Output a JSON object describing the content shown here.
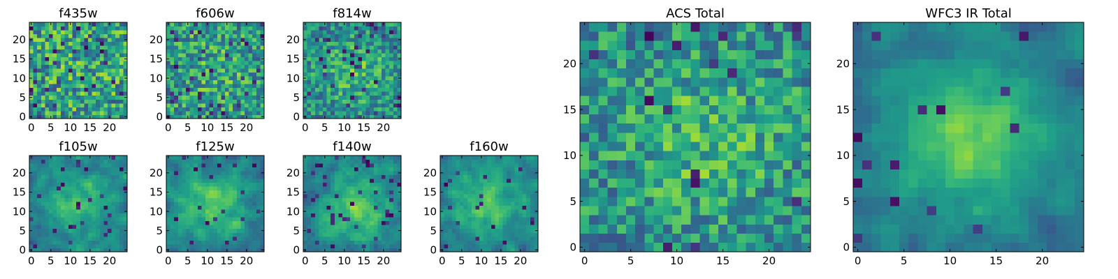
{
  "figure": {
    "background": "#ffffff",
    "colormap": "viridis"
  },
  "chart_data": [
    {
      "type": "heatmap",
      "title": "f435w",
      "grid": [
        25,
        25
      ],
      "xticks": [
        0,
        5,
        10,
        15,
        20
      ],
      "yticks": [
        0,
        5,
        10,
        15,
        20
      ],
      "xlim": [
        -0.5,
        24.5
      ],
      "ylim": [
        -0.5,
        24.5
      ],
      "pattern": "noise",
      "peak_center": [
        12,
        12
      ],
      "peak_strength": 0.05,
      "noise": 1.0,
      "dark_fraction": 0.06,
      "seed": 11
    },
    {
      "type": "heatmap",
      "title": "f606w",
      "grid": [
        25,
        25
      ],
      "xticks": [
        0,
        5,
        10,
        15,
        20
      ],
      "yticks": [
        0,
        5,
        10,
        15,
        20
      ],
      "xlim": [
        -0.5,
        24.5
      ],
      "ylim": [
        -0.5,
        24.5
      ],
      "pattern": "noise",
      "peak_center": [
        12,
        12
      ],
      "peak_strength": 0.15,
      "noise": 0.95,
      "dark_fraction": 0.05,
      "seed": 23
    },
    {
      "type": "heatmap",
      "title": "f814w",
      "grid": [
        25,
        25
      ],
      "xticks": [
        0,
        5,
        10,
        15,
        20
      ],
      "yticks": [
        0,
        5,
        10,
        15,
        20
      ],
      "xlim": [
        -0.5,
        24.5
      ],
      "ylim": [
        -0.5,
        24.5
      ],
      "pattern": "noise",
      "peak_center": [
        13,
        12
      ],
      "peak_strength": 0.35,
      "noise": 0.85,
      "dark_fraction": 0.07,
      "seed": 37
    },
    {
      "type": "heatmap",
      "title": "f105w",
      "grid": [
        25,
        25
      ],
      "xticks": [
        0,
        5,
        10,
        15,
        20
      ],
      "yticks": [
        0,
        5,
        10,
        15,
        20
      ],
      "xlim": [
        -0.5,
        24.5
      ],
      "ylim": [
        -0.5,
        24.5
      ],
      "pattern": "smooth",
      "peak_center": [
        12,
        12
      ],
      "peak_strength": 0.55,
      "noise": 0.7,
      "dark_fraction": 0.05,
      "seed": 41
    },
    {
      "type": "heatmap",
      "title": "f125w",
      "grid": [
        25,
        25
      ],
      "xticks": [
        0,
        5,
        10,
        15,
        20
      ],
      "yticks": [
        0,
        5,
        10,
        15,
        20
      ],
      "xlim": [
        -0.5,
        24.5
      ],
      "ylim": [
        -0.5,
        24.5
      ],
      "pattern": "smooth",
      "peak_center": [
        12,
        12
      ],
      "peak_strength": 0.55,
      "noise": 0.7,
      "dark_fraction": 0.04,
      "seed": 53
    },
    {
      "type": "heatmap",
      "title": "f140w",
      "grid": [
        25,
        25
      ],
      "xticks": [
        0,
        5,
        10,
        15,
        20
      ],
      "yticks": [
        0,
        5,
        10,
        15,
        20
      ],
      "xlim": [
        -0.5,
        24.5
      ],
      "ylim": [
        -0.5,
        24.5
      ],
      "pattern": "smooth",
      "peak_center": [
        13,
        11
      ],
      "peak_strength": 0.6,
      "noise": 0.7,
      "dark_fraction": 0.05,
      "seed": 67
    },
    {
      "type": "heatmap",
      "title": "f160w",
      "grid": [
        25,
        25
      ],
      "xticks": [
        0,
        5,
        10,
        15,
        20
      ],
      "yticks": [
        0,
        5,
        10,
        15,
        20
      ],
      "xlim": [
        -0.5,
        24.5
      ],
      "ylim": [
        -0.5,
        24.5
      ],
      "pattern": "smooth",
      "peak_center": [
        11,
        12
      ],
      "peak_strength": 0.6,
      "noise": 0.7,
      "dark_fraction": 0.04,
      "seed": 79
    },
    {
      "type": "heatmap",
      "title": "ACS Total",
      "grid": [
        25,
        25
      ],
      "xticks": [
        0,
        5,
        10,
        15,
        20
      ],
      "yticks": [
        0,
        5,
        10,
        15,
        20
      ],
      "xlim": [
        -0.5,
        24.5
      ],
      "ylim": [
        -0.5,
        24.5
      ],
      "pattern": "noise",
      "peak_center": [
        13,
        12
      ],
      "peak_strength": 0.3,
      "noise": 0.85,
      "dark_fraction": 0.03,
      "seed": 97
    },
    {
      "type": "heatmap",
      "title": "WFC3 IR Total",
      "grid": [
        25,
        25
      ],
      "xticks": [
        0,
        5,
        10,
        15,
        20
      ],
      "yticks": [
        0,
        5,
        10,
        15,
        20
      ],
      "xlim": [
        -0.5,
        24.5
      ],
      "ylim": [
        -0.5,
        24.5
      ],
      "pattern": "smooth",
      "peak_center": [
        12,
        12
      ],
      "peak_strength": 0.75,
      "noise": 0.55,
      "dark_fraction": 0.03,
      "seed": 113
    }
  ]
}
